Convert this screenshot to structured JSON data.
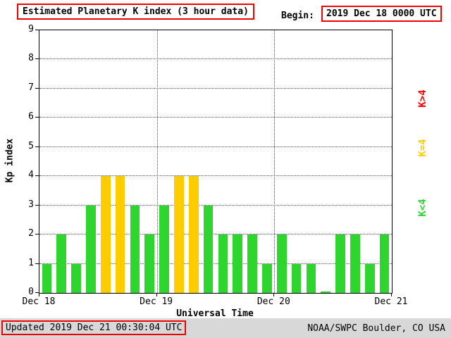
{
  "header": {
    "title": "Estimated Planetary K index (3 hour data)",
    "begin_label": "Begin:",
    "begin_value": "2019 Dec 18 0000 UTC"
  },
  "footer": {
    "updated": "Updated 2019 Dec 21 00:30:04 UTC",
    "source": "NOAA/SWPC Boulder, CO USA"
  },
  "legend": [
    {
      "label": "K>4",
      "color": "#ff0000"
    },
    {
      "label": "K=4",
      "color": "#ffcc00"
    },
    {
      "label": "K<4",
      "color": "#2fd52f"
    }
  ],
  "chart_data": {
    "type": "bar",
    "title": "Estimated Planetary K index (3 hour data)",
    "xlabel": "Universal Time",
    "ylabel": "Kp index",
    "ylim": [
      0,
      9
    ],
    "y_ticks": [
      0,
      1,
      2,
      3,
      4,
      5,
      6,
      7,
      8,
      9
    ],
    "x_ticks": [
      "Dec 18",
      "Dec 19",
      "Dec 20",
      "Dec 21"
    ],
    "bar_interval_hours": 3,
    "grid": "dotted",
    "values": [
      1,
      2,
      1,
      3,
      4,
      4,
      3,
      2,
      3,
      4,
      4,
      3,
      2,
      2,
      2,
      1,
      2,
      1,
      1,
      0,
      2,
      2,
      1,
      2
    ],
    "colors": {
      "above4": "#ff0000",
      "equal4": "#ffcc00",
      "below4": "#2fd52f"
    }
  }
}
